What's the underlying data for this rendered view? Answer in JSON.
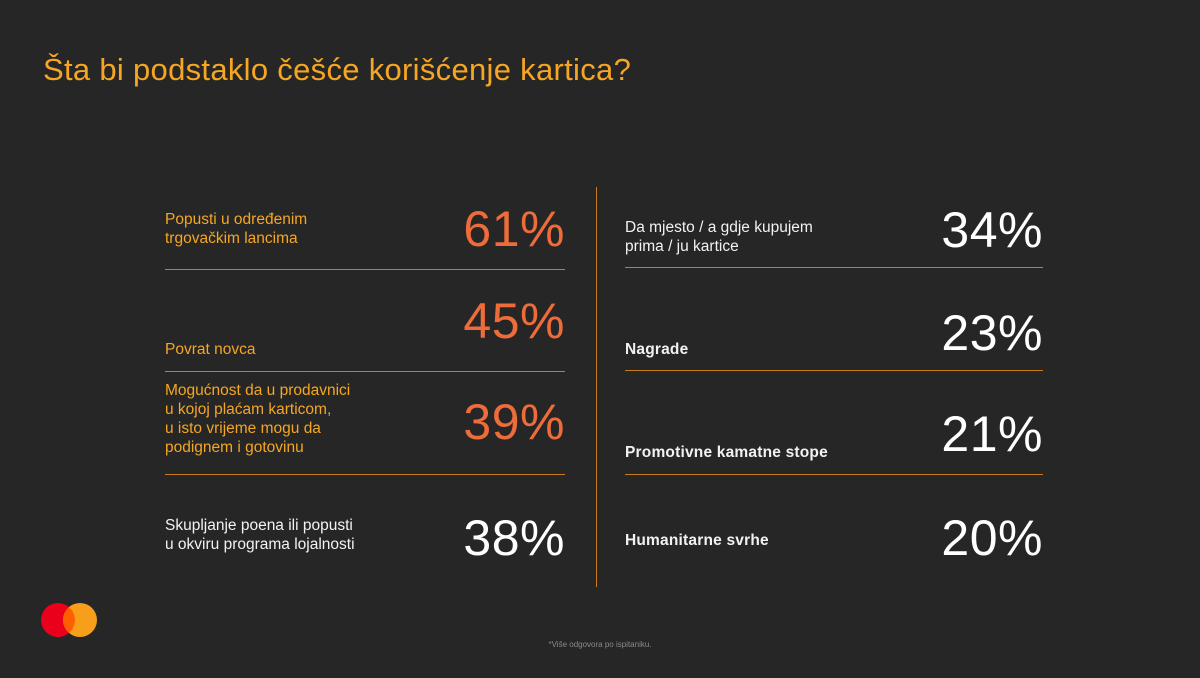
{
  "title": "Šta bi podstaklo češće korišćenje kartica?",
  "left_items": [
    {
      "label_lines": [
        "Popusti u određenim",
        "trgovačkim lancima"
      ],
      "value": "61%"
    },
    {
      "label_lines": [
        "Povrat novca"
      ],
      "value": "45%"
    },
    {
      "label_lines": [
        "Mogućnost da u prodavnici",
        "u kojoj plaćam karticom,",
        "u isto vrijeme mogu da",
        "podignem i gotovinu"
      ],
      "value": "39%"
    },
    {
      "label_lines": [
        "Skupljanje poena ili popusti",
        "u okviru programa lojalnosti"
      ],
      "value": "38%"
    }
  ],
  "right_items": [
    {
      "label_lines": [
        "Da mjesto / a gdje kupujem",
        "prima / ju kartice"
      ],
      "value": "34%"
    },
    {
      "label_lines": [
        "Nagrade"
      ],
      "value": "23%"
    },
    {
      "label_lines": [
        "Promotivne kamatne stope"
      ],
      "value": "21%"
    },
    {
      "label_lines": [
        "Humanitarne svrhe"
      ],
      "value": "20%"
    }
  ],
  "footnote": "*Više odgovora po ispitaniku.",
  "colors": {
    "background": "#262626",
    "title": "#f5a623",
    "accent_value": "#ee6b3a",
    "divider": "#c77a1e",
    "logo_red": "#eb001b",
    "logo_orange": "#f79e1b"
  },
  "logo": "mastercard-logo-icon"
}
